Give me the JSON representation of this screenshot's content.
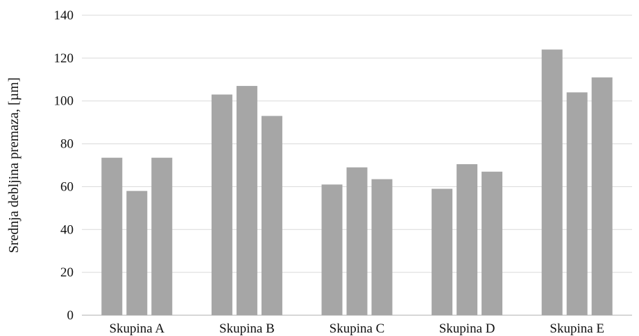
{
  "chart_data": {
    "type": "bar",
    "categories": [
      "Skupina A",
      "Skupina B",
      "Skupina C",
      "Skupina D",
      "Skupina E"
    ],
    "series": [
      {
        "values": [
          73.5,
          103,
          61,
          59,
          124
        ]
      },
      {
        "values": [
          58,
          107,
          69,
          70.5,
          104
        ]
      },
      {
        "values": [
          73.5,
          93,
          63.5,
          67,
          111
        ]
      }
    ],
    "ylabel": "Srednja debljina premaza, [µm]",
    "xlabel": "",
    "ylim": [
      0,
      140
    ],
    "yticks": [
      0,
      20,
      40,
      60,
      80,
      100,
      120,
      140
    ],
    "grid": true,
    "colors": {
      "bar": "#a6a6a6",
      "grid": "#d9d9d9",
      "text": "#111111"
    }
  }
}
